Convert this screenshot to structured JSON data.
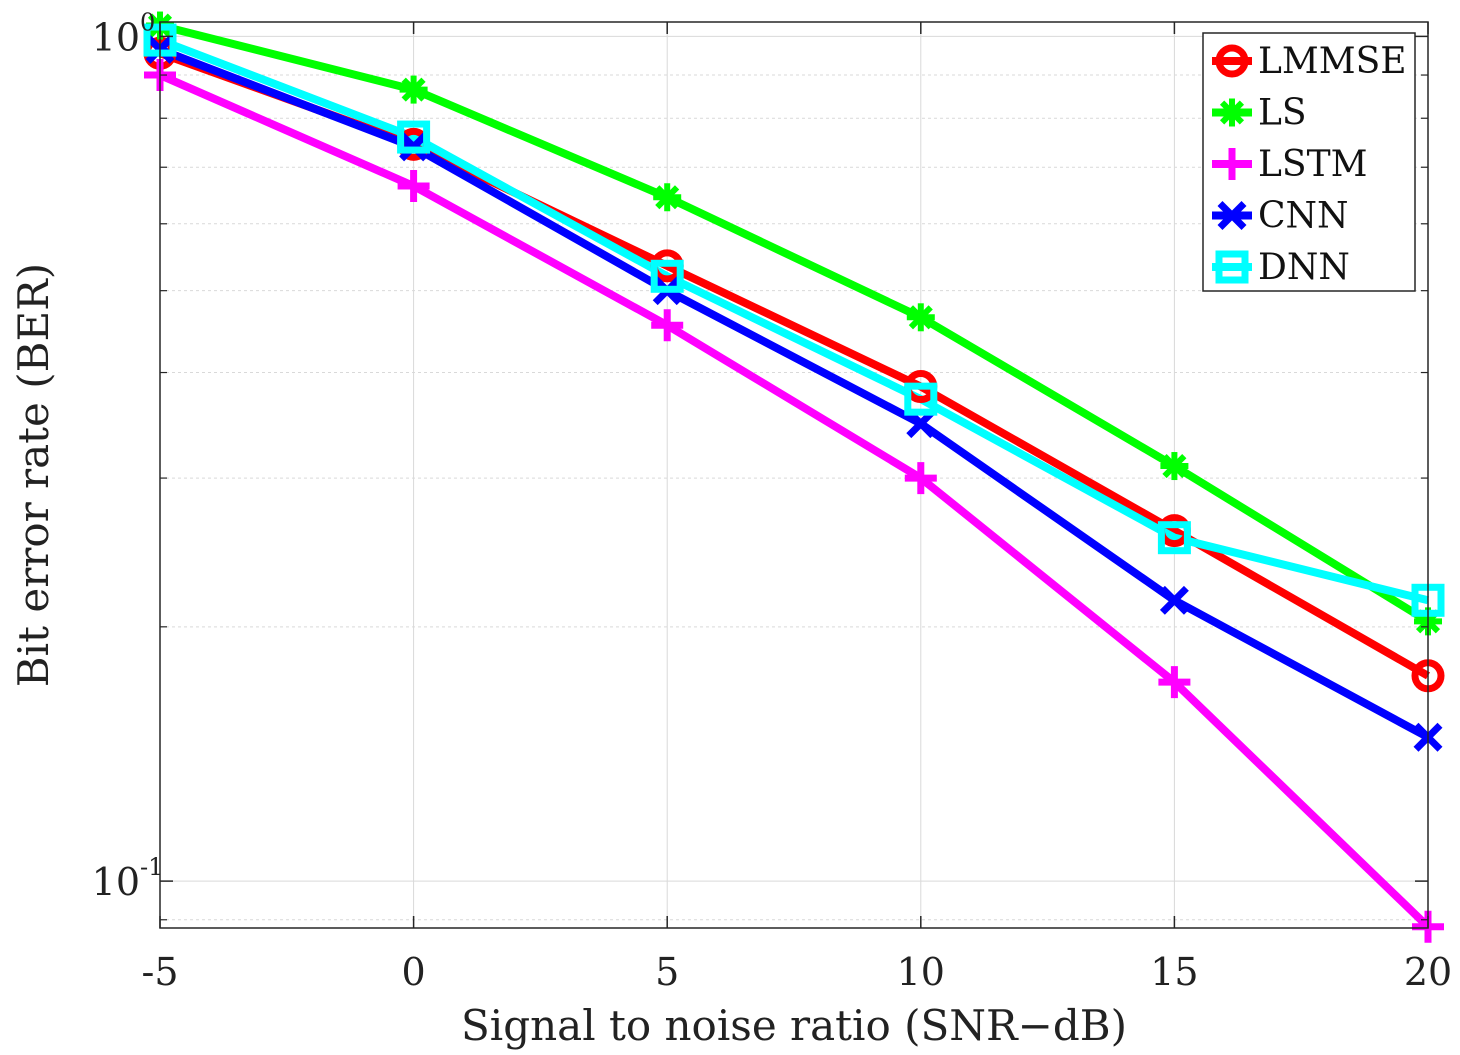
{
  "chart_data": {
    "type": "line",
    "title": "",
    "xlabel": "Signal to noise ratio (SNR−dB)",
    "ylabel": "Bit error rate (BER)",
    "x": [
      -5,
      0,
      5,
      10,
      15,
      20
    ],
    "xticks": [
      "-5",
      "0",
      "5",
      "10",
      "15",
      "20"
    ],
    "xlim": [
      -5,
      20
    ],
    "yscale": "log",
    "ylim": [
      0.088,
      1.04
    ],
    "yticks": [
      {
        "base": "10",
        "exp": "-1",
        "value": 0.1
      },
      {
        "base": "10",
        "exp": "0",
        "value": 1.0
      }
    ],
    "grid": true,
    "legend_position": "top-right",
    "series": [
      {
        "name": "LMMSE",
        "color": "#ff0000",
        "marker": "circle",
        "values": [
          0.955,
          0.745,
          0.535,
          0.385,
          0.26,
          0.175
        ]
      },
      {
        "name": "LS",
        "color": "#00ff00",
        "marker": "asterisk",
        "values": [
          1.03,
          0.865,
          0.645,
          0.465,
          0.31,
          0.203
        ]
      },
      {
        "name": "LSTM",
        "color": "#ff00ff",
        "marker": "plus",
        "values": [
          0.9,
          0.665,
          0.455,
          0.3,
          0.172,
          0.0883
        ]
      },
      {
        "name": "CNN",
        "color": "#0000ff",
        "marker": "x",
        "values": [
          0.965,
          0.74,
          0.5,
          0.348,
          0.215,
          0.148
        ]
      },
      {
        "name": "DNN",
        "color": "#00ffff",
        "marker": "square",
        "values": [
          0.99,
          0.76,
          0.52,
          0.372,
          0.255,
          0.215
        ]
      }
    ]
  }
}
